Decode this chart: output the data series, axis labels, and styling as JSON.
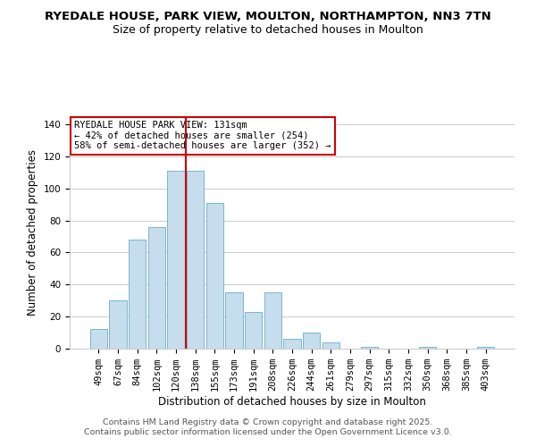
{
  "title": "RYEDALE HOUSE, PARK VIEW, MOULTON, NORTHAMPTON, NN3 7TN",
  "subtitle": "Size of property relative to detached houses in Moulton",
  "xlabel": "Distribution of detached houses by size in Moulton",
  "ylabel": "Number of detached properties",
  "bar_labels": [
    "49sqm",
    "67sqm",
    "84sqm",
    "102sqm",
    "120sqm",
    "138sqm",
    "155sqm",
    "173sqm",
    "191sqm",
    "208sqm",
    "226sqm",
    "244sqm",
    "261sqm",
    "279sqm",
    "297sqm",
    "315sqm",
    "332sqm",
    "350sqm",
    "368sqm",
    "385sqm",
    "403sqm"
  ],
  "bar_values": [
    12,
    30,
    68,
    76,
    111,
    111,
    91,
    35,
    23,
    35,
    6,
    10,
    4,
    0,
    1,
    0,
    0,
    1,
    0,
    0,
    1
  ],
  "bar_color": "#c5dded",
  "bar_edge_color": "#7ab5d5",
  "vline_x_index": 4.5,
  "vline_color": "#cc0000",
  "ylim": [
    0,
    145
  ],
  "yticks": [
    0,
    20,
    40,
    60,
    80,
    100,
    120,
    140
  ],
  "annotation_title": "RYEDALE HOUSE PARK VIEW: 131sqm",
  "annotation_line1": "← 42% of detached houses are smaller (254)",
  "annotation_line2": "58% of semi-detached houses are larger (352) →",
  "annotation_box_color": "#ffffff",
  "annotation_box_edge": "#cc0000",
  "footer1": "Contains HM Land Registry data © Crown copyright and database right 2025.",
  "footer2": "Contains public sector information licensed under the Open Government Licence v3.0.",
  "background_color": "#ffffff",
  "grid_color": "#cccccc",
  "title_fontsize": 9.5,
  "subtitle_fontsize": 9,
  "axis_label_fontsize": 8.5,
  "tick_fontsize": 7.5,
  "annotation_fontsize": 7.5,
  "footer_fontsize": 6.8
}
